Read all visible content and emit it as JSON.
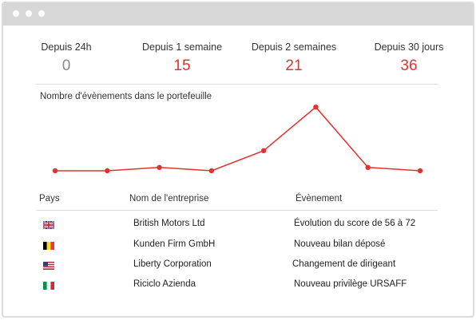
{
  "window": {
    "controls": [
      "window-dot",
      "window-dot",
      "window-dot"
    ]
  },
  "stats": [
    {
      "label": "Depuis 24h",
      "value": "0",
      "color": "#888888"
    },
    {
      "label": "Depuis 1 semaine",
      "value": "15",
      "color": "#e0332f"
    },
    {
      "label": "Depuis 2 semaines",
      "value": "21",
      "color": "#e0332f"
    },
    {
      "label": "Depuis 30 jours",
      "value": "36",
      "color": "#e0332f"
    }
  ],
  "chart_data": {
    "type": "line",
    "title": "Nombre d'évènements dans le portefeuille",
    "x": [
      1,
      2,
      3,
      4,
      5,
      6,
      7,
      8
    ],
    "values": [
      0,
      0,
      1,
      0,
      6,
      19,
      1,
      0
    ],
    "ylim": [
      0,
      20
    ],
    "grid": false,
    "color": "#e0332f"
  },
  "table": {
    "headers": {
      "country": "Pays",
      "company": "Nom de l'entreprise",
      "event": "Évènement"
    },
    "rows": [
      {
        "flag": "uk-flag-icon",
        "company": "British Motors Ltd",
        "event": "Évolution du score de 56 à 72"
      },
      {
        "flag": "belgium-flag-icon",
        "company": "Kunden Firm GmbH",
        "event": "Nouveau bilan déposé"
      },
      {
        "flag": "usa-flag-icon",
        "company": "Liberty Corporation",
        "event": "Changement de dirigeant"
      },
      {
        "flag": "italy-flag-icon",
        "company": "Riciclo Azienda",
        "event": "Nouveau privilège URSAFF"
      }
    ]
  }
}
